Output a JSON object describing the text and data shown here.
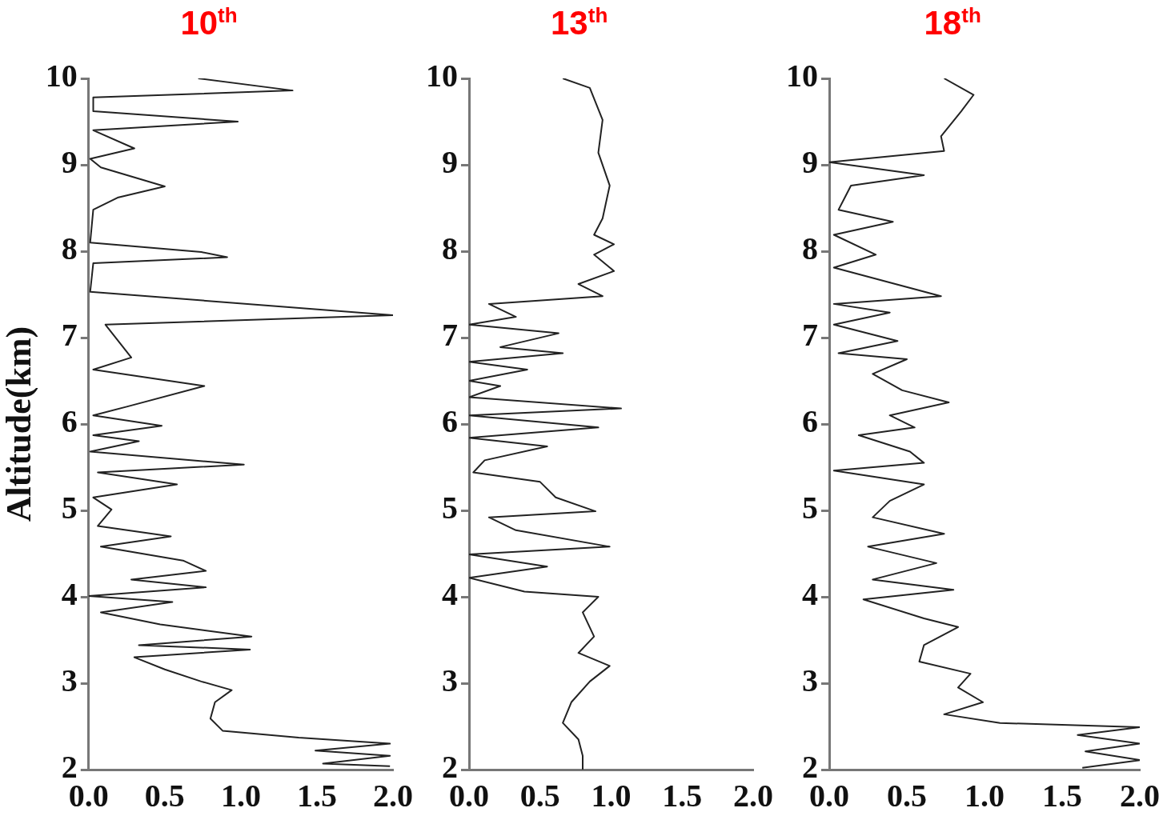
{
  "chart_data": [
    {
      "type": "line",
      "title": "10$^{th}$",
      "ylabel": "Altitude(km)",
      "xlim": [
        0,
        2
      ],
      "xticks": [
        {
          "value": 0,
          "label": "0.0"
        },
        {
          "value": 0.5,
          "label": "0.5"
        },
        {
          "value": 1,
          "label": "1.0"
        },
        {
          "value": 1.5,
          "label": "1.5"
        },
        {
          "value": 2,
          "label": "2.0"
        }
      ],
      "ylim": [
        2,
        10
      ],
      "yticks": [
        2,
        3,
        4,
        5,
        6,
        7,
        8,
        9,
        10
      ],
      "marker": "none",
      "series": [
        {
          "color": "#222222",
          "x": [
            0.72,
            1.34,
            0.03,
            0.03,
            0.98,
            0.03,
            0.3,
            0.01,
            0.08,
            0.5,
            0.19,
            0.03,
            0.01,
            0.74,
            0.91,
            0.03,
            0.01,
            2.0,
            0.11,
            0.28,
            0.03,
            0.76,
            0.25,
            0.03,
            0.48,
            0.03,
            0.33,
            0.01,
            1.02,
            0.06,
            0.58,
            0.03,
            0.15,
            0.06,
            0.54,
            0.08,
            0.62,
            0.77,
            0.28,
            0.77,
            0.0,
            0.55,
            0.08,
            0.47,
            1.07,
            0.33,
            1.06,
            0.3,
            0.5,
            0.74,
            0.94,
            0.83,
            0.8,
            0.88,
            1.38,
            1.98,
            1.49,
            1.98,
            1.54,
            1.98
          ],
          "values": [
            10.0,
            9.86,
            9.78,
            9.62,
            9.5,
            9.4,
            9.19,
            9.07,
            8.97,
            8.75,
            8.62,
            8.48,
            8.1,
            7.99,
            7.93,
            7.86,
            7.53,
            7.26,
            7.15,
            6.77,
            6.63,
            6.44,
            6.2,
            6.1,
            5.98,
            5.87,
            5.8,
            5.68,
            5.53,
            5.44,
            5.3,
            5.15,
            5.01,
            4.82,
            4.7,
            4.58,
            4.42,
            4.3,
            4.2,
            4.11,
            4.01,
            3.94,
            3.82,
            3.68,
            3.54,
            3.44,
            3.39,
            3.3,
            3.16,
            3.02,
            2.92,
            2.78,
            2.59,
            2.45,
            2.37,
            2.3,
            2.22,
            2.16,
            2.07,
            2.04
          ]
        }
      ]
    },
    {
      "type": "line",
      "title": "13$^{th}$",
      "xlim": [
        0,
        2
      ],
      "xticks": [
        {
          "value": 0,
          "label": "0.0"
        },
        {
          "value": 0.5,
          "label": "0.5"
        },
        {
          "value": 1,
          "label": "1.0"
        },
        {
          "value": 1.5,
          "label": "1.5"
        },
        {
          "value": 2,
          "label": "2.0"
        }
      ],
      "ylim": [
        2,
        10
      ],
      "yticks": [
        2,
        3,
        4,
        5,
        6,
        7,
        8,
        9,
        10
      ],
      "marker": "none",
      "series": [
        {
          "color": "#222222",
          "x": [
            0.66,
            0.85,
            0.94,
            0.91,
            0.99,
            0.94,
            0.88,
            1.02,
            0.88,
            1.02,
            0.77,
            0.94,
            0.14,
            0.33,
            0.0,
            0.63,
            0.22,
            0.66,
            0.0,
            0.41,
            0.0,
            0.22,
            0.0,
            1.07,
            0.0,
            0.91,
            0.0,
            0.55,
            0.11,
            0.03,
            0.5,
            0.61,
            0.89,
            0.14,
            0.33,
            0.99,
            0.0,
            0.55,
            0.0,
            0.39,
            0.91,
            0.8,
            0.88,
            0.77,
            0.99,
            0.85,
            0.72,
            0.66,
            0.77,
            0.8,
            0.8
          ],
          "values": [
            10.0,
            9.89,
            9.52,
            9.14,
            8.76,
            8.38,
            8.19,
            8.08,
            7.96,
            7.77,
            7.62,
            7.48,
            7.39,
            7.24,
            7.15,
            7.05,
            6.89,
            6.82,
            6.72,
            6.63,
            6.5,
            6.44,
            6.31,
            6.18,
            6.1,
            5.96,
            5.84,
            5.74,
            5.58,
            5.44,
            5.33,
            5.15,
            4.99,
            4.92,
            4.77,
            4.58,
            4.49,
            4.35,
            4.22,
            4.06,
            4.0,
            3.82,
            3.54,
            3.35,
            3.2,
            3.02,
            2.78,
            2.54,
            2.35,
            2.16,
            2.0
          ]
        }
      ]
    },
    {
      "type": "line",
      "title": "18$^{th}$",
      "xlim": [
        0,
        2
      ],
      "xticks": [
        {
          "value": 0,
          "label": "0.0"
        },
        {
          "value": 0.5,
          "label": "0.5"
        },
        {
          "value": 1,
          "label": "1.0"
        },
        {
          "value": 1.5,
          "label": "1.5"
        },
        {
          "value": 2,
          "label": "2.0"
        }
      ],
      "ylim": [
        2,
        10
      ],
      "yticks": [
        2,
        3,
        4,
        5,
        6,
        7,
        8,
        9,
        10
      ],
      "marker": "none",
      "series": [
        {
          "color": "#222222",
          "x": [
            0.74,
            0.93,
            0.85,
            0.72,
            0.74,
            0.0,
            0.61,
            0.14,
            0.06,
            0.41,
            0.03,
            0.3,
            0.03,
            0.72,
            0.03,
            0.39,
            0.03,
            0.44,
            0.06,
            0.5,
            0.28,
            0.47,
            0.77,
            0.39,
            0.55,
            0.19,
            0.52,
            0.61,
            0.03,
            0.61,
            0.39,
            0.28,
            0.74,
            0.25,
            0.69,
            0.28,
            0.8,
            0.22,
            0.61,
            0.83,
            0.61,
            0.58,
            0.91,
            0.83,
            0.99,
            0.74,
            1.1,
            2.0,
            1.6,
            2.0,
            1.65,
            2.0,
            1.63
          ],
          "values": [
            10.0,
            9.81,
            9.62,
            9.33,
            9.16,
            9.03,
            8.88,
            8.76,
            8.48,
            8.34,
            8.19,
            7.96,
            7.81,
            7.48,
            7.39,
            7.29,
            7.15,
            6.96,
            6.82,
            6.75,
            6.58,
            6.39,
            6.25,
            6.1,
            5.96,
            5.87,
            5.68,
            5.55,
            5.46,
            5.3,
            5.11,
            4.92,
            4.73,
            4.58,
            4.39,
            4.2,
            4.08,
            3.97,
            3.75,
            3.65,
            3.44,
            3.25,
            3.11,
            2.95,
            2.78,
            2.64,
            2.54,
            2.49,
            2.4,
            2.3,
            2.21,
            2.11,
            2.02
          ]
        }
      ]
    }
  ]
}
